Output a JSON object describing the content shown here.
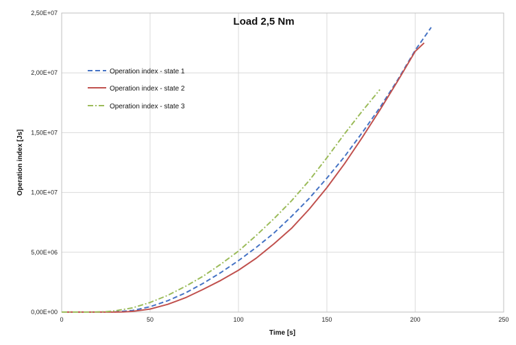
{
  "chart_data": {
    "type": "line",
    "title": "Load 2,5 Nm",
    "xlabel": "Time [s]",
    "ylabel": "Operation index [Js]",
    "xlim": [
      0,
      250
    ],
    "ylim": [
      0,
      25000000
    ],
    "x_ticks": [
      "0",
      "50",
      "100",
      "150",
      "200",
      "250"
    ],
    "y_ticks": [
      "0,00E+00",
      "5,00E+06",
      "1,00E+07",
      "1,50E+07",
      "2,00E+07",
      "2,50E+07"
    ],
    "grid": true,
    "legend_position": "top-left",
    "series": [
      {
        "name": "Operation index - state 1",
        "color": "#4472C4",
        "dash": "dashed",
        "x": [
          0,
          20,
          30,
          40,
          50,
          60,
          70,
          80,
          90,
          100,
          110,
          120,
          130,
          140,
          150,
          160,
          170,
          180,
          190,
          200,
          209
        ],
        "y": [
          0,
          0,
          20000,
          130000,
          450000,
          950000,
          1600000,
          2400000,
          3300000,
          4300000,
          5400000,
          6600000,
          8000000,
          9500000,
          11200000,
          13000000,
          15000000,
          17100000,
          19400000,
          21900000,
          23800000
        ]
      },
      {
        "name": "Operation index - state 2",
        "color": "#C0504D",
        "dash": "solid",
        "x": [
          0,
          30,
          35,
          40,
          50,
          60,
          70,
          80,
          90,
          100,
          110,
          120,
          130,
          140,
          150,
          160,
          170,
          180,
          190,
          200,
          205
        ],
        "y": [
          0,
          0,
          20000,
          60000,
          250000,
          650000,
          1200000,
          1900000,
          2650000,
          3500000,
          4500000,
          5700000,
          7000000,
          8600000,
          10400000,
          12400000,
          14600000,
          16900000,
          19300000,
          21800000,
          22500000
        ]
      },
      {
        "name": "Operation index - state 3",
        "color": "#9BBB59",
        "dash": "dashdot",
        "x": [
          0,
          15,
          25,
          30,
          40,
          50,
          60,
          70,
          80,
          90,
          100,
          110,
          120,
          130,
          140,
          150,
          160,
          170,
          180
        ],
        "y": [
          0,
          0,
          30000,
          100000,
          350000,
          800000,
          1400000,
          2150000,
          3000000,
          4000000,
          5100000,
          6400000,
          7800000,
          9300000,
          11000000,
          12900000,
          14900000,
          16800000,
          18600000
        ]
      }
    ]
  }
}
